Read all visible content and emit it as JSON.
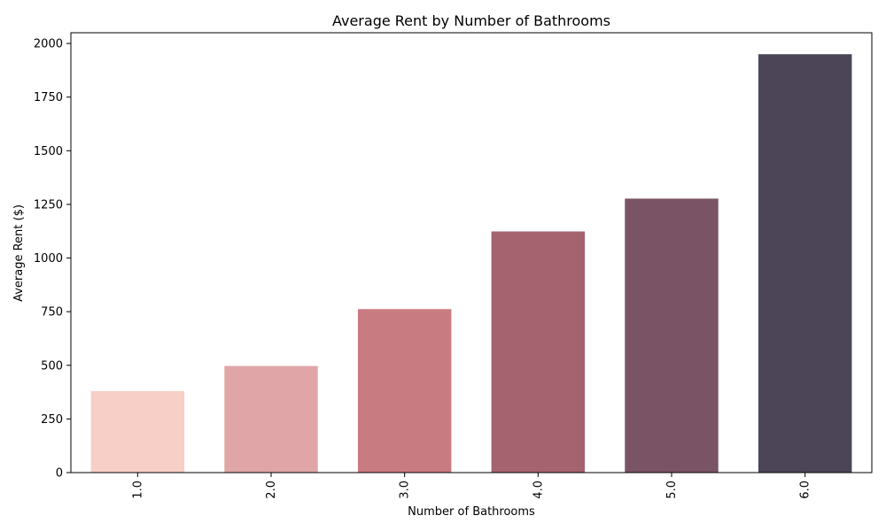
{
  "chart_data": {
    "type": "bar",
    "title": "Average Rent by Number of Bathrooms",
    "xlabel": "Number of Bathrooms",
    "ylabel": "Average Rent ($)",
    "categories": [
      "1.0",
      "2.0",
      "3.0",
      "4.0",
      "5.0",
      "6.0"
    ],
    "values": [
      380,
      497,
      762,
      1124,
      1277,
      1950
    ],
    "colors": [
      "#f7cfc6",
      "#e0a6a7",
      "#c97b82",
      "#a5626f",
      "#7a5465",
      "#4b4557"
    ],
    "ylim": [
      0,
      2050
    ],
    "yticks": [
      0,
      250,
      500,
      750,
      1000,
      1250,
      1500,
      1750,
      2000
    ],
    "grid": false,
    "legend": "none"
  }
}
